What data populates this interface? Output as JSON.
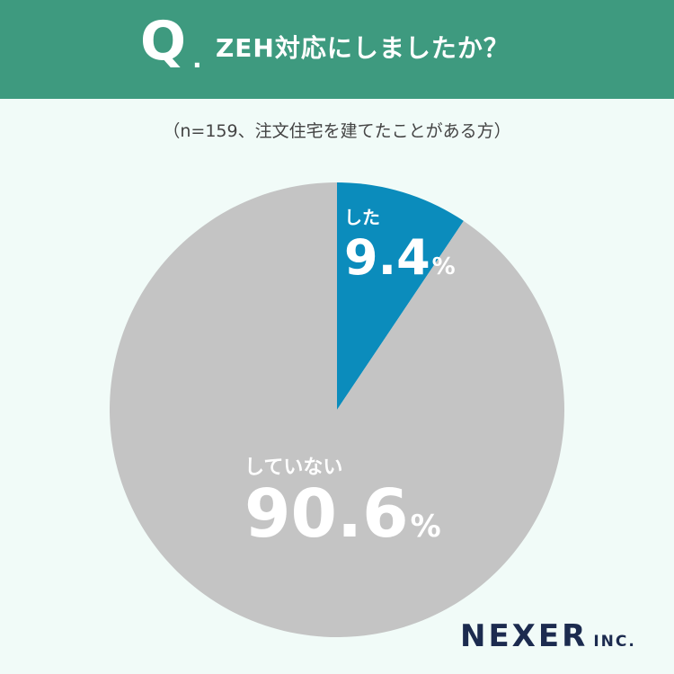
{
  "header": {
    "q_mark": "Q",
    "q_dot": ".",
    "question": "ZEH対応にしましたか？"
  },
  "subtitle": "（n=159、注文住宅を建てたことがある方）",
  "logo": {
    "main": "NEXER",
    "sub": "INC."
  },
  "colors": {
    "header": "#3e9a7f",
    "background": "#f1fbf8",
    "slice_yes": "#0b8cbc",
    "slice_no": "#c4c4c4"
  },
  "chart_data": {
    "type": "pie",
    "title": "ZEH対応にしましたか？",
    "categories": [
      "した",
      "していない"
    ],
    "values": [
      9.4,
      90.6
    ],
    "unit": "%",
    "labels": [
      {
        "name": "した",
        "value": "9.4",
        "unit": "%"
      },
      {
        "name": "していない",
        "value": "90.6",
        "unit": "%"
      }
    ],
    "start_angle": "12 o'clock",
    "direction": "clockwise"
  }
}
